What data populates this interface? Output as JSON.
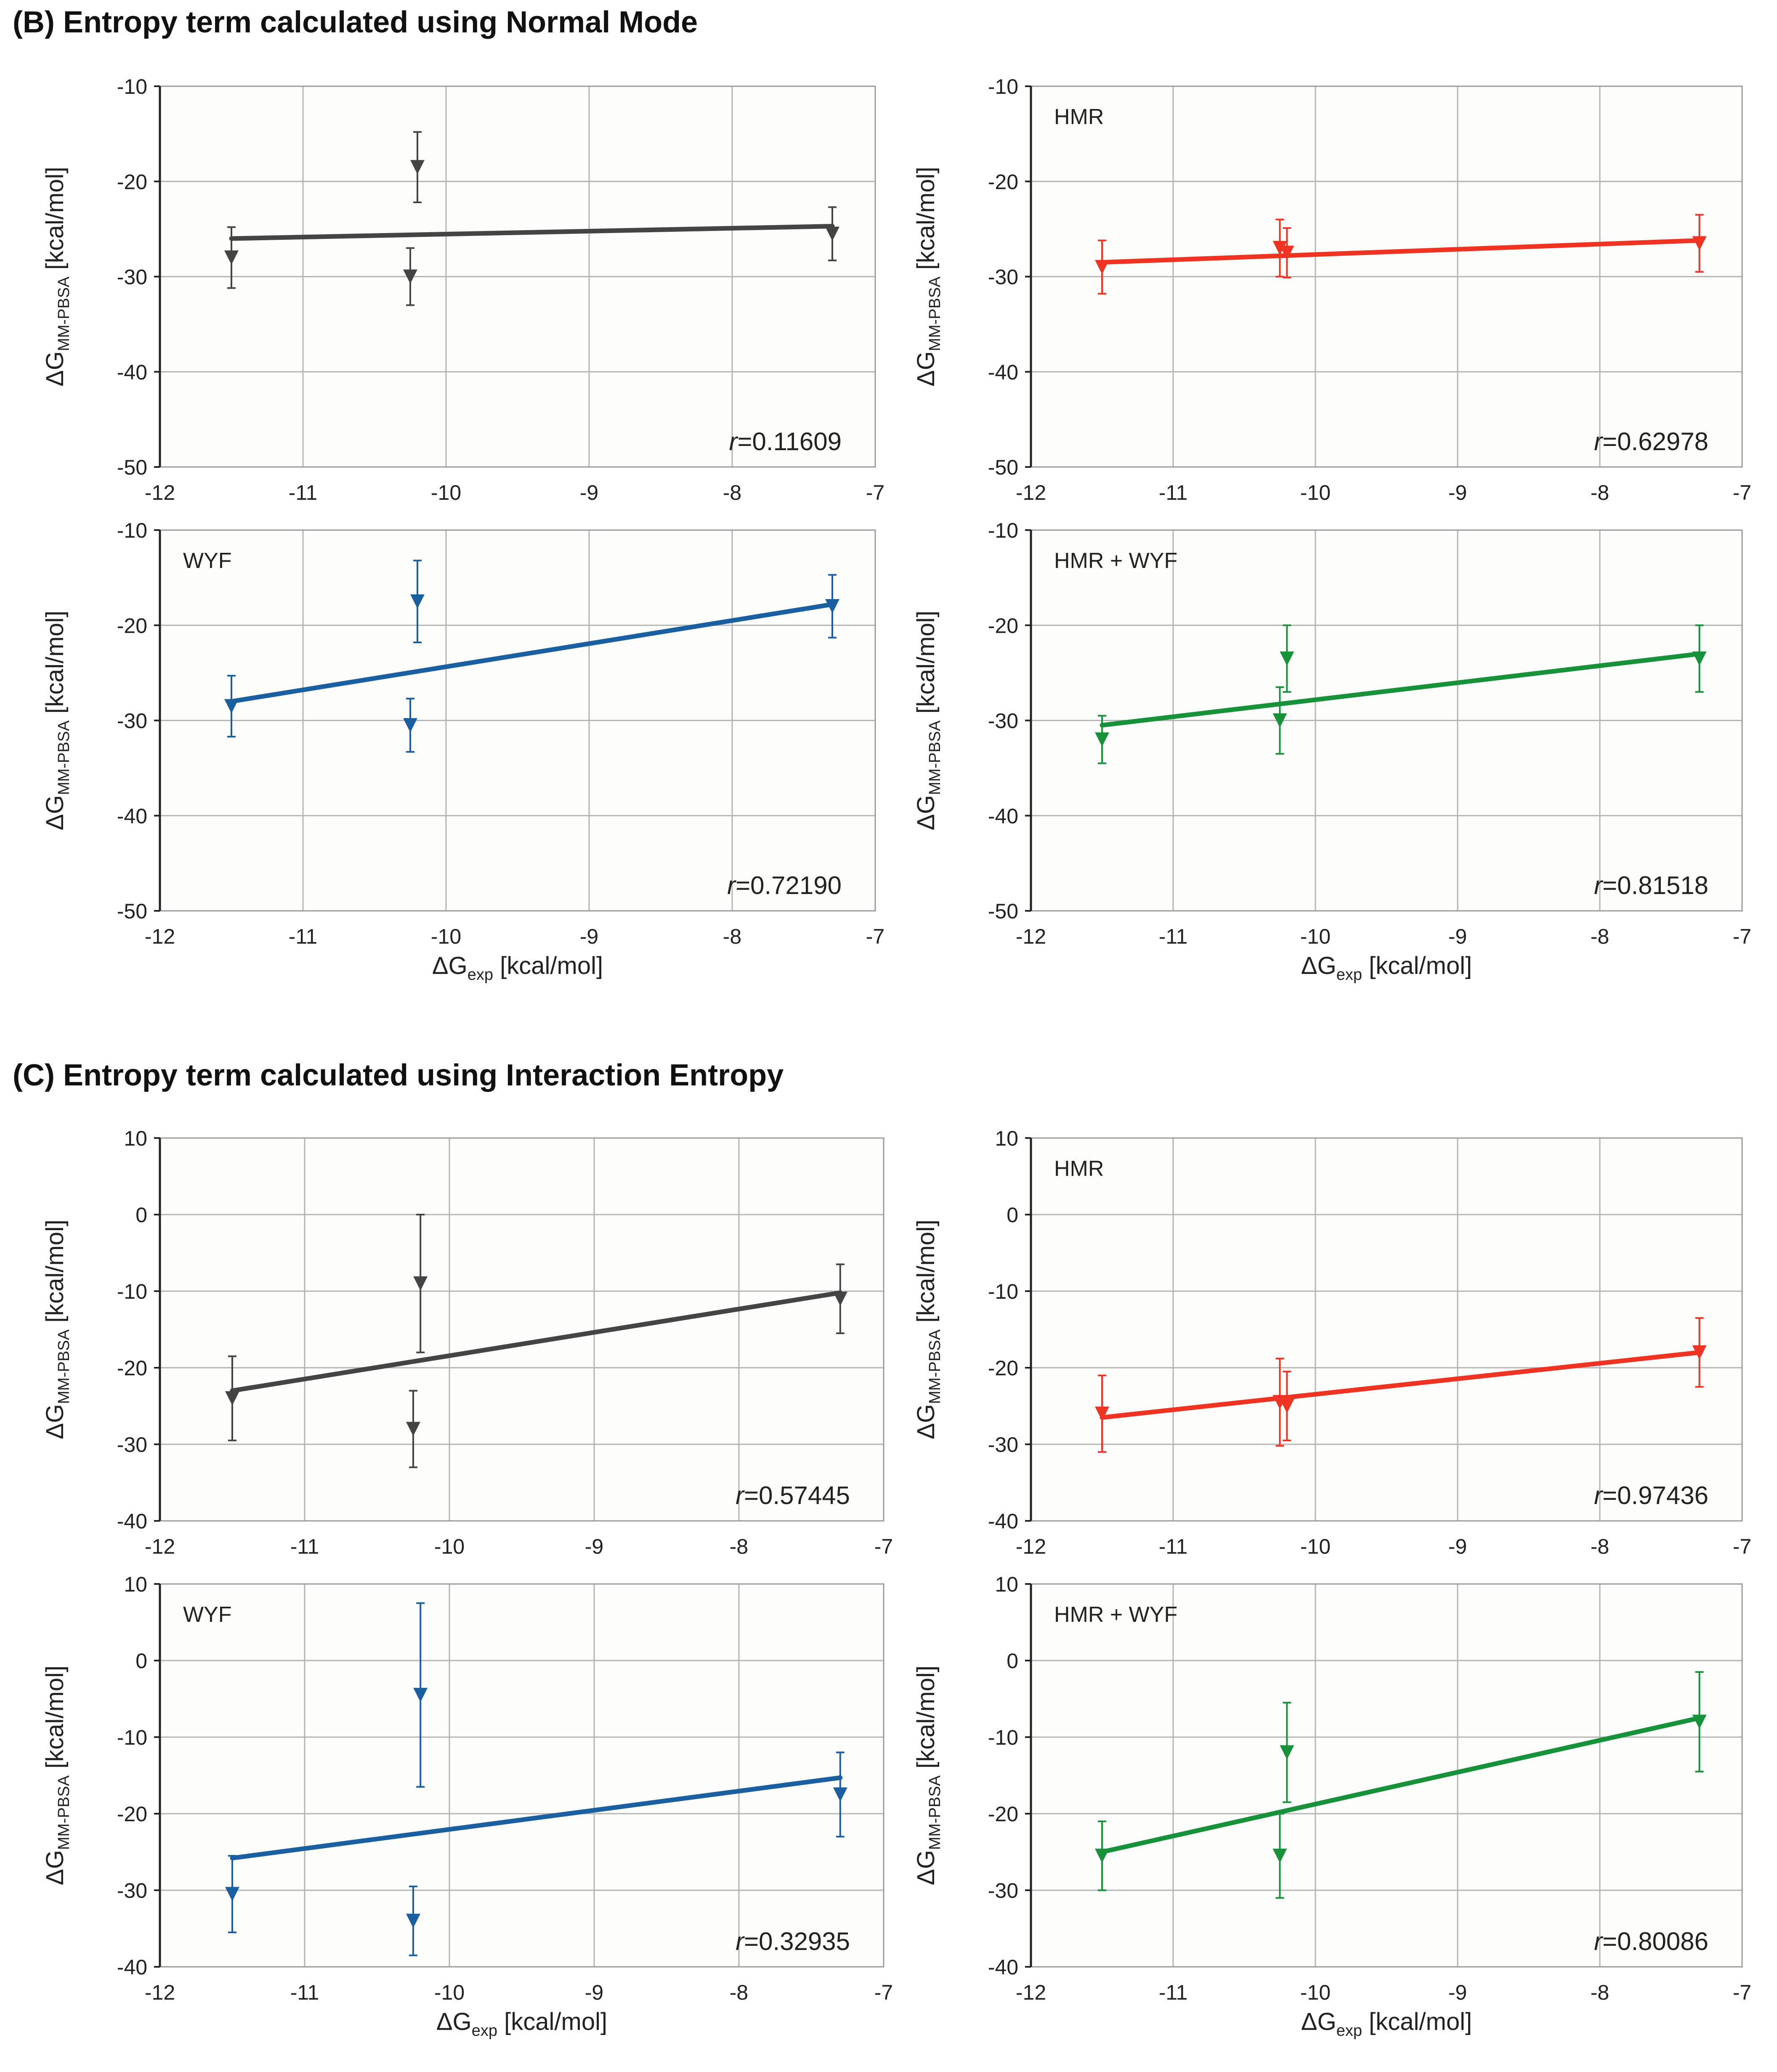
{
  "sections": {
    "b": {
      "title": "(B) Entropy term calculated using Normal Mode"
    },
    "c": {
      "title": "(C) Entropy term calculated using Interaction Entropy"
    }
  },
  "axis_text": {
    "ylabel_main": "ΔG",
    "ylabel_sub": "MM-PBSA",
    "ylabel_unit": " [kcal/mol]",
    "xlabel_main": "ΔG",
    "xlabel_sub": "exp",
    "xlabel_unit": " [kcal/mol]",
    "r_prefix": "r",
    "r_eq": "="
  },
  "chart_data": [
    {
      "id": "b1",
      "section": "B",
      "type": "scatter",
      "label": "",
      "color": "#444444",
      "r": "0.11609",
      "xlim": [
        -12,
        -7
      ],
      "ylim": [
        -50,
        -10
      ],
      "xticks": [
        -12,
        -11,
        -10,
        -9,
        -8,
        -7
      ],
      "yticks": [
        -50,
        -40,
        -30,
        -20,
        -10
      ],
      "points": [
        {
          "x": -11.5,
          "y": -28,
          "yerr": 3.2
        },
        {
          "x": -10.25,
          "y": -30,
          "yerr": 3
        },
        {
          "x": -10.2,
          "y": -18.5,
          "yerr": 3.7
        },
        {
          "x": -7.3,
          "y": -25.5,
          "yerr": 2.8
        }
      ],
      "fit": [
        [
          -11.5,
          -26
        ],
        [
          -7.3,
          -24.7
        ]
      ]
    },
    {
      "id": "b2",
      "section": "B",
      "type": "scatter",
      "label": "HMR",
      "color": "#ee3322",
      "r": "0.62978",
      "xlim": [
        -12,
        -7
      ],
      "ylim": [
        -50,
        -10
      ],
      "xticks": [
        -12,
        -11,
        -10,
        -9,
        -8,
        -7
      ],
      "yticks": [
        -50,
        -40,
        -30,
        -20,
        -10
      ],
      "points": [
        {
          "x": -11.5,
          "y": -29,
          "yerr": 2.8
        },
        {
          "x": -10.25,
          "y": -27,
          "yerr": 3
        },
        {
          "x": -10.2,
          "y": -27.5,
          "yerr": 2.6
        },
        {
          "x": -7.3,
          "y": -26.5,
          "yerr": 3
        }
      ],
      "fit": [
        [
          -11.5,
          -28.5
        ],
        [
          -7.3,
          -26.2
        ]
      ]
    },
    {
      "id": "b3",
      "section": "B",
      "type": "scatter",
      "label": "WYF",
      "color": "#1a5fa0",
      "r": "0.72190",
      "xlim": [
        -12,
        -7
      ],
      "ylim": [
        -50,
        -10
      ],
      "xticks": [
        -12,
        -11,
        -10,
        -9,
        -8,
        -7
      ],
      "yticks": [
        -50,
        -40,
        -30,
        -20,
        -10
      ],
      "points": [
        {
          "x": -11.5,
          "y": -28.5,
          "yerr": 3.2
        },
        {
          "x": -10.25,
          "y": -30.5,
          "yerr": 2.8
        },
        {
          "x": -10.2,
          "y": -17.5,
          "yerr": 4.3
        },
        {
          "x": -7.3,
          "y": -18,
          "yerr": 3.3
        }
      ],
      "fit": [
        [
          -11.5,
          -28
        ],
        [
          -7.3,
          -17.8
        ]
      ]
    },
    {
      "id": "b4",
      "section": "B",
      "type": "scatter",
      "label": "HMR + WYF",
      "color": "#17913a",
      "r": "0.81518",
      "xlim": [
        -12,
        -7
      ],
      "ylim": [
        -50,
        -10
      ],
      "xticks": [
        -12,
        -11,
        -10,
        -9,
        -8,
        -7
      ],
      "yticks": [
        -50,
        -40,
        -30,
        -20,
        -10
      ],
      "points": [
        {
          "x": -11.5,
          "y": -32,
          "yerr": 2.5
        },
        {
          "x": -10.25,
          "y": -30,
          "yerr": 3.5
        },
        {
          "x": -10.2,
          "y": -23.5,
          "yerr": 3.5
        },
        {
          "x": -7.3,
          "y": -23.5,
          "yerr": 3.5
        }
      ],
      "fit": [
        [
          -11.5,
          -30.5
        ],
        [
          -7.3,
          -23
        ]
      ]
    },
    {
      "id": "c1",
      "section": "C",
      "type": "scatter",
      "label": "",
      "color": "#444444",
      "r": "0.57445",
      "xlim": [
        -12,
        -7
      ],
      "ylim": [
        -40,
        10
      ],
      "xticks": [
        -12,
        -11,
        -10,
        -9,
        -8,
        -7
      ],
      "yticks": [
        -40,
        -30,
        -20,
        -10,
        0,
        10
      ],
      "points": [
        {
          "x": -11.5,
          "y": -24,
          "yerr": 5.5
        },
        {
          "x": -10.25,
          "y": -28,
          "yerr": 5
        },
        {
          "x": -10.2,
          "y": -9,
          "yerr": 9
        },
        {
          "x": -7.3,
          "y": -11,
          "yerr": 4.5
        }
      ],
      "fit": [
        [
          -11.5,
          -23
        ],
        [
          -7.3,
          -10.2
        ]
      ]
    },
    {
      "id": "c2",
      "section": "C",
      "type": "scatter",
      "label": "HMR",
      "color": "#ee3322",
      "r": "0.97436",
      "xlim": [
        -12,
        -7
      ],
      "ylim": [
        -40,
        10
      ],
      "xticks": [
        -12,
        -11,
        -10,
        -9,
        -8,
        -7
      ],
      "yticks": [
        -40,
        -30,
        -20,
        -10,
        0,
        10
      ],
      "points": [
        {
          "x": -11.5,
          "y": -26,
          "yerr": 5
        },
        {
          "x": -10.25,
          "y": -24.5,
          "yerr": 5.7
        },
        {
          "x": -10.2,
          "y": -25,
          "yerr": 4.5
        },
        {
          "x": -7.3,
          "y": -18,
          "yerr": 4.5
        }
      ],
      "fit": [
        [
          -11.5,
          -26.5
        ],
        [
          -7.3,
          -18
        ]
      ]
    },
    {
      "id": "c3",
      "section": "C",
      "type": "scatter",
      "label": "WYF",
      "color": "#1a5fa0",
      "r": "0.32935",
      "xlim": [
        -12,
        -7
      ],
      "ylim": [
        -40,
        10
      ],
      "xticks": [
        -12,
        -11,
        -10,
        -9,
        -8,
        -7
      ],
      "yticks": [
        -40,
        -30,
        -20,
        -10,
        0,
        10
      ],
      "points": [
        {
          "x": -11.5,
          "y": -30.5,
          "yerr": 5
        },
        {
          "x": -10.25,
          "y": -34,
          "yerr": 4.5
        },
        {
          "x": -10.2,
          "y": -4.5,
          "yerr": 12
        },
        {
          "x": -7.3,
          "y": -17.5,
          "yerr": 5.5
        }
      ],
      "fit": [
        [
          -11.5,
          -25.8
        ],
        [
          -7.3,
          -15.3
        ]
      ]
    },
    {
      "id": "c4",
      "section": "C",
      "type": "scatter",
      "label": "HMR + WYF",
      "color": "#17913a",
      "r": "0.80086",
      "xlim": [
        -12,
        -7
      ],
      "ylim": [
        -40,
        10
      ],
      "xticks": [
        -12,
        -11,
        -10,
        -9,
        -8,
        -7
      ],
      "yticks": [
        -40,
        -30,
        -20,
        -10,
        0,
        10
      ],
      "points": [
        {
          "x": -11.5,
          "y": -25.5,
          "yerr": 4.5
        },
        {
          "x": -10.25,
          "y": -25.5,
          "yerr": 5.5
        },
        {
          "x": -10.2,
          "y": -12,
          "yerr": 6.5
        },
        {
          "x": -7.3,
          "y": -8,
          "yerr": 6.5
        }
      ],
      "fit": [
        [
          -11.5,
          -25
        ],
        [
          -7.3,
          -7.5
        ]
      ]
    }
  ]
}
